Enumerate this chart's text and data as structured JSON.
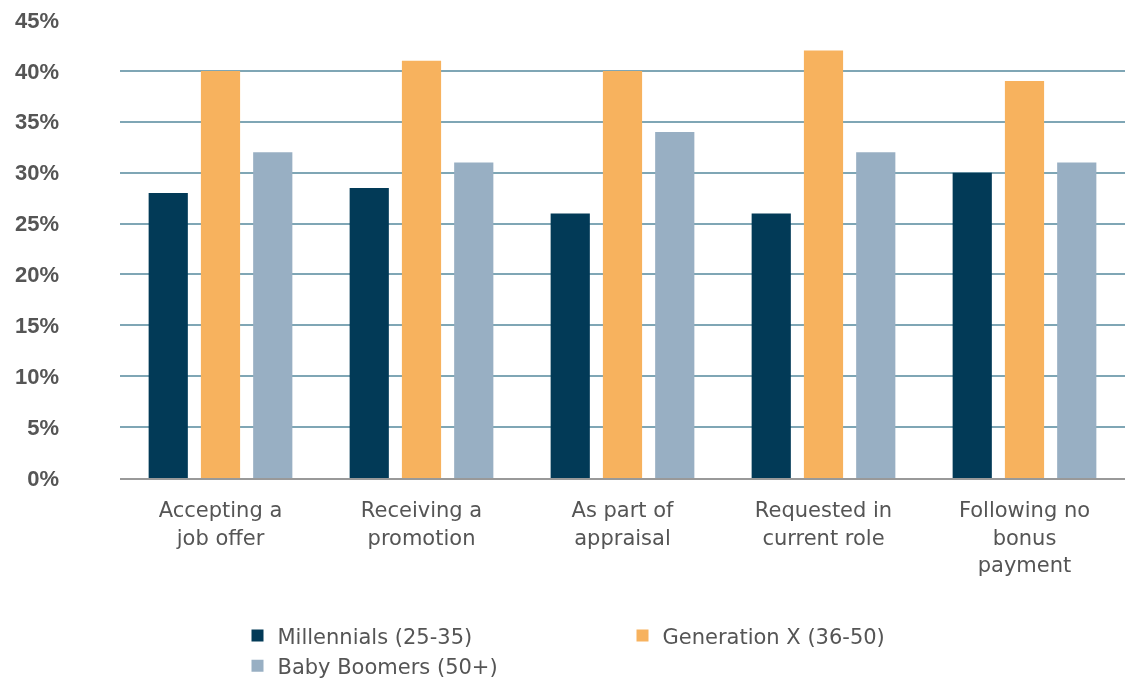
{
  "chart_data": {
    "type": "bar",
    "categories": [
      "Accepting a job offer",
      "Receiving a promotion",
      "As part of appraisal",
      "Requested in current role",
      "Following no bonus payment"
    ],
    "series": [
      {
        "name": "Millennials (25-35)",
        "color": "#023a57",
        "values": [
          28,
          28.5,
          26,
          26,
          30
        ]
      },
      {
        "name": "Generation X (36-50)",
        "color": "#f7b25e",
        "values": [
          40,
          41,
          40,
          42,
          39
        ]
      },
      {
        "name": "Baby Boomers (50+)",
        "color": "#98afc3",
        "values": [
          32,
          31,
          34,
          32,
          31
        ]
      }
    ],
    "ylim": [
      0,
      45
    ],
    "yticks": [
      {
        "value": 0,
        "label": "0%"
      },
      {
        "value": 5,
        "label": "5%"
      },
      {
        "value": 10,
        "label": "10%"
      },
      {
        "value": 15,
        "label": "15%"
      },
      {
        "value": 20,
        "label": "20%"
      },
      {
        "value": 25,
        "label": "25%"
      },
      {
        "value": 30,
        "label": "30%"
      },
      {
        "value": 35,
        "label": "35%"
      },
      {
        "value": 40,
        "label": "40%"
      },
      {
        "value": 45,
        "label": "45%"
      }
    ],
    "grid": "y",
    "legend": "bottom"
  }
}
